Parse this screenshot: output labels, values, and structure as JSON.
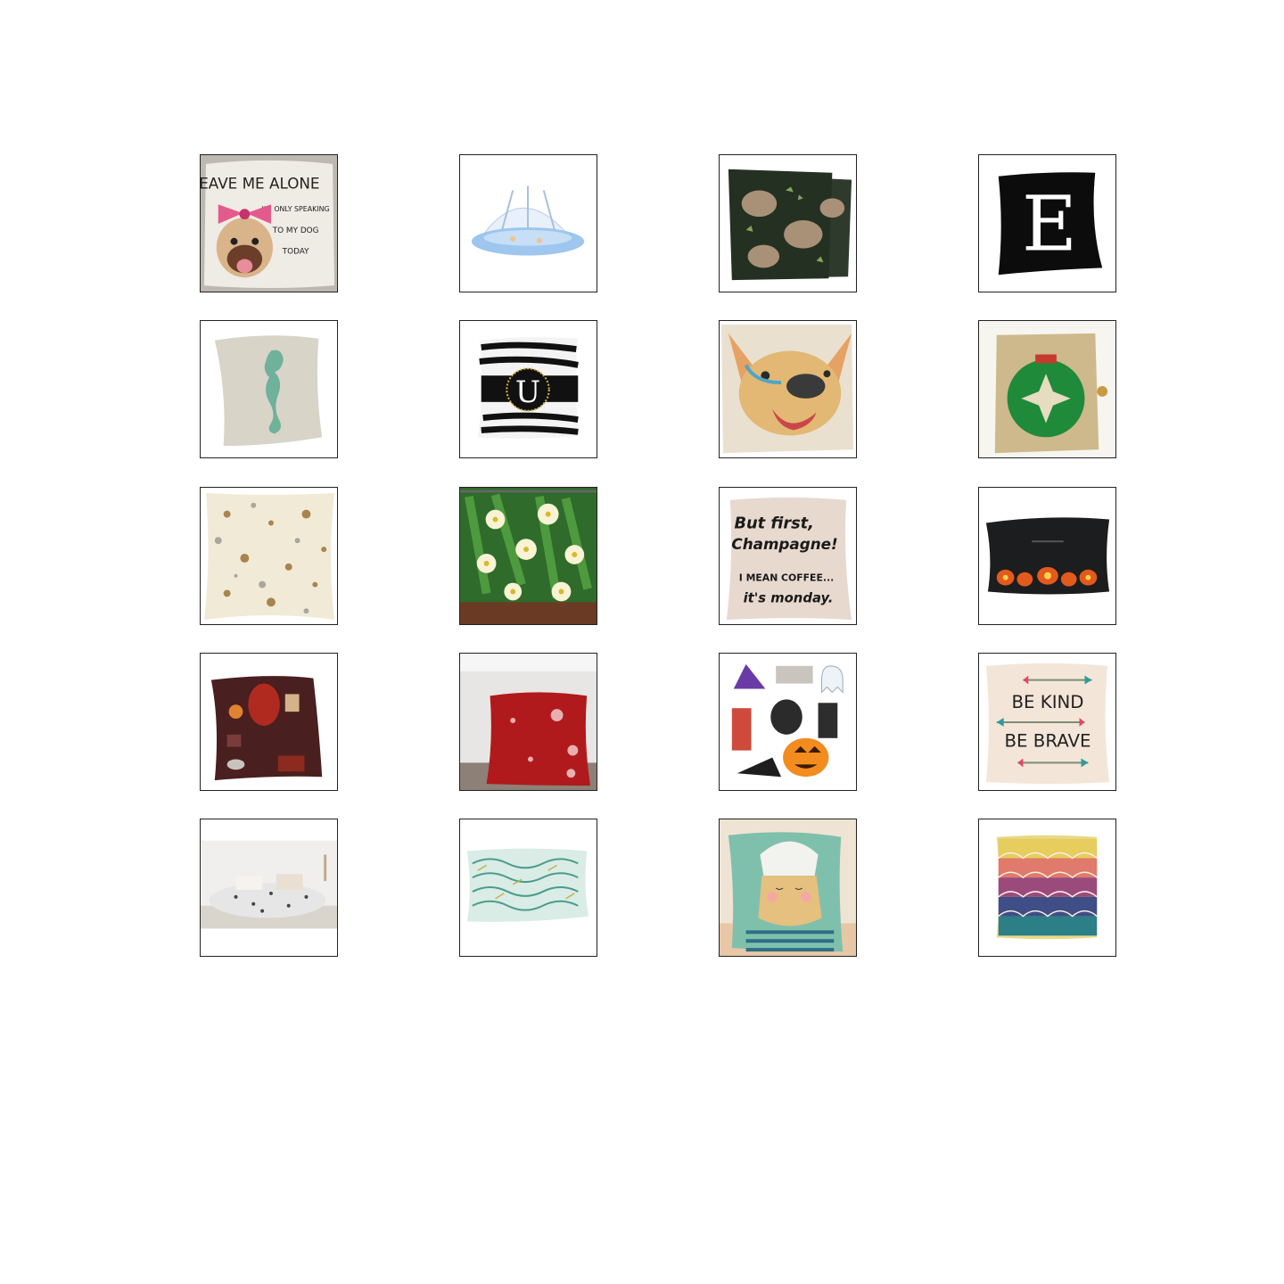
{
  "grid": {
    "items": [
      {
        "icon": "pug-pillow-icon",
        "text": [
          "LEAVE ME ALONE",
          "I'M ONLY SPEAKING",
          "TO MY DOG",
          "TODAY"
        ]
      },
      {
        "icon": "baby-mosquito-net-icon"
      },
      {
        "icon": "bear-pattern-pillow-pair-icon"
      },
      {
        "icon": "letter-e-pillow-icon",
        "text": [
          "E"
        ]
      },
      {
        "icon": "seahorse-pillow-icon"
      },
      {
        "icon": "zebra-monogram-pillow-icon",
        "text": [
          "U"
        ]
      },
      {
        "icon": "french-bulldog-pillow-icon"
      },
      {
        "icon": "sequin-ornament-pillow-icon"
      },
      {
        "icon": "terrazzo-pillow-icon"
      },
      {
        "icon": "floral-curtain-icon"
      },
      {
        "icon": "champagne-quote-pillow-icon",
        "text": [
          "But first,",
          "Champagne!",
          "I MEAN COFFEE...",
          "it's monday."
        ]
      },
      {
        "icon": "halloween-lumbar-pillow-icon"
      },
      {
        "icon": "halloween-maroon-pillow-icon"
      },
      {
        "icon": "red-snowflake-pillow-icon"
      },
      {
        "icon": "halloween-stickers-icon"
      },
      {
        "icon": "be-kind-be-brave-pillow-icon",
        "text": [
          "BE KIND",
          "BE BRAVE"
        ]
      },
      {
        "icon": "bedding-set-icon"
      },
      {
        "icon": "leaf-lumbar-pillow-icon"
      },
      {
        "icon": "cartoon-face-pillow-icon"
      },
      {
        "icon": "moroccan-ombre-pillow-icon"
      }
    ]
  }
}
